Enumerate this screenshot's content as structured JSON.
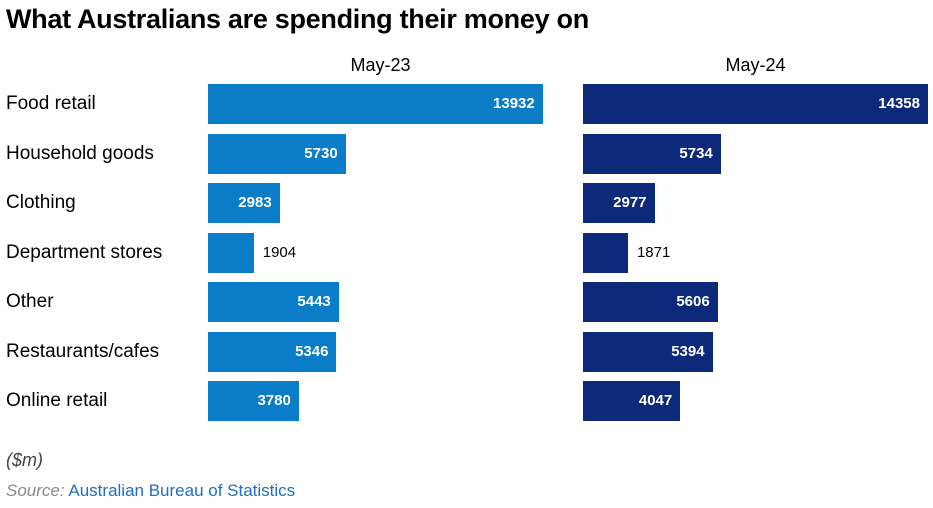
{
  "chart_data": {
    "type": "bar",
    "orientation": "horizontal",
    "title": "What Australians are spending their money on",
    "categories": [
      "Food retail",
      "Household goods",
      "Clothing",
      "Department stores",
      "Other",
      "Restaurants/cafes",
      "Online retail"
    ],
    "series": [
      {
        "name": "May-23",
        "color": "#0a7cc8",
        "values": [
          13932,
          5730,
          2983,
          1904,
          5443,
          5346,
          3780
        ]
      },
      {
        "name": "May-24",
        "color": "#0d2a7a",
        "values": [
          14358,
          5734,
          2977,
          1871,
          5606,
          5394,
          4047
        ]
      }
    ],
    "unit_note": "($m)",
    "xlim": [
      0,
      14358
    ],
    "grid": false,
    "legend": "none"
  },
  "source": {
    "label": "Source:",
    "name": "Australian Bureau of Statistics"
  }
}
